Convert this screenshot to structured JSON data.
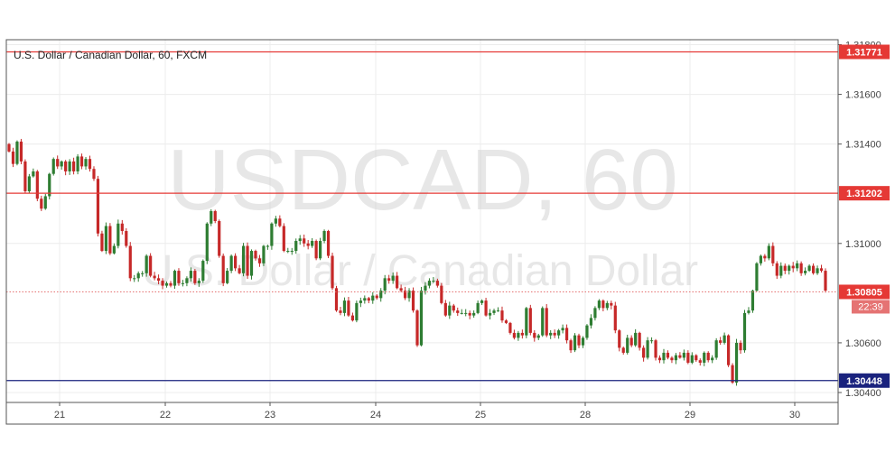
{
  "chart_data": {
    "type": "candlestick",
    "title": "U.S. Dollar / Canadian Dollar, 60, FXCM",
    "watermark": {
      "symbol": "USDCAD, 60",
      "description": "U.S. Dollar / Canadian Dollar"
    },
    "x_labels": [
      "21",
      "22",
      "23",
      "24",
      "25",
      "28",
      "29",
      "30"
    ],
    "y_ticks": [
      "1.31800",
      "1.31600",
      "1.31400",
      "1.31000",
      "1.30600",
      "1.30400"
    ],
    "ylim": [
      1.3036,
      1.3182
    ],
    "grid": true,
    "levels": [
      {
        "label": "1.31771",
        "value": 1.31771,
        "color": "#e53935",
        "style": "solid"
      },
      {
        "label": "1.31202",
        "value": 1.31202,
        "color": "#e53935",
        "style": "solid"
      },
      {
        "label": "1.30448",
        "value": 1.30448,
        "color": "#1a237e",
        "style": "solid"
      },
      {
        "label": "1.30805",
        "value": 1.30805,
        "color": "#e57373",
        "style": "dotted"
      }
    ],
    "countdown": "22:39",
    "up_color": "#2e7d32",
    "down_color": "#c62828",
    "closes": [
      1.3137,
      1.3132,
      1.3141,
      1.3133,
      1.3121,
      1.3127,
      1.3129,
      1.3118,
      1.3114,
      1.3119,
      1.3128,
      1.3134,
      1.3131,
      1.3133,
      1.3129,
      1.3133,
      1.3129,
      1.3135,
      1.3131,
      1.3134,
      1.313,
      1.3126,
      1.3104,
      1.3097,
      1.3107,
      1.3096,
      1.3099,
      1.3108,
      1.3105,
      1.3099,
      1.3086,
      1.3086,
      1.3088,
      1.3088,
      1.3095,
      1.3087,
      1.3086,
      1.3085,
      1.3083,
      1.3084,
      1.3083,
      1.3089,
      1.3084,
      1.3084,
      1.3086,
      1.3089,
      1.3084,
      1.3085,
      1.3093,
      1.3108,
      1.3113,
      1.3109,
      1.3095,
      1.3084,
      1.3089,
      1.3095,
      1.309,
      1.3088,
      1.3099,
      1.3087,
      1.3097,
      1.3094,
      1.3092,
      1.3099,
      1.3099,
      1.3108,
      1.311,
      1.3107,
      1.3097,
      1.3097,
      1.3097,
      1.3101,
      1.3102,
      1.31,
      1.3099,
      1.3101,
      1.3094,
      1.3101,
      1.3105,
      1.3095,
      1.3082,
      1.3073,
      1.3072,
      1.3077,
      1.3071,
      1.3069,
      1.3076,
      1.3077,
      1.3078,
      1.3077,
      1.3079,
      1.3078,
      1.3081,
      1.3086,
      1.3085,
      1.3087,
      1.3082,
      1.3081,
      1.3078,
      1.3081,
      1.3073,
      1.3059,
      1.3081,
      1.3083,
      1.3085,
      1.3085,
      1.3083,
      1.3076,
      1.3071,
      1.3075,
      1.3073,
      1.3072,
      1.3072,
      1.3072,
      1.3071,
      1.3072,
      1.3076,
      1.3077,
      1.3071,
      1.3072,
      1.3073,
      1.3073,
      1.3069,
      1.3068,
      1.3064,
      1.3062,
      1.3064,
      1.3063,
      1.3074,
      1.3064,
      1.3062,
      1.3063,
      1.3074,
      1.3063,
      1.3064,
      1.3063,
      1.3065,
      1.3066,
      1.3061,
      1.3057,
      1.3063,
      1.3059,
      1.3062,
      1.3067,
      1.307,
      1.3074,
      1.3077,
      1.3074,
      1.3076,
      1.3075,
      1.3065,
      1.3058,
      1.3056,
      1.3062,
      1.3059,
      1.3064,
      1.3058,
      1.3054,
      1.3061,
      1.3061,
      1.3054,
      1.3053,
      1.3056,
      1.3054,
      1.3053,
      1.3055,
      1.3054,
      1.3056,
      1.3052,
      1.3055,
      1.3053,
      1.3052,
      1.3056,
      1.3053,
      1.3054,
      1.3061,
      1.306,
      1.3063,
      1.3051,
      1.3044,
      1.306,
      1.3057,
      1.3072,
      1.3073,
      1.3081,
      1.3092,
      1.3095,
      1.3094,
      1.3099,
      1.3092,
      1.3087,
      1.3091,
      1.3089,
      1.3091,
      1.309,
      1.3092,
      1.3088,
      1.3089,
      1.3091,
      1.3088,
      1.309,
      1.3089,
      1.3081
    ]
  }
}
